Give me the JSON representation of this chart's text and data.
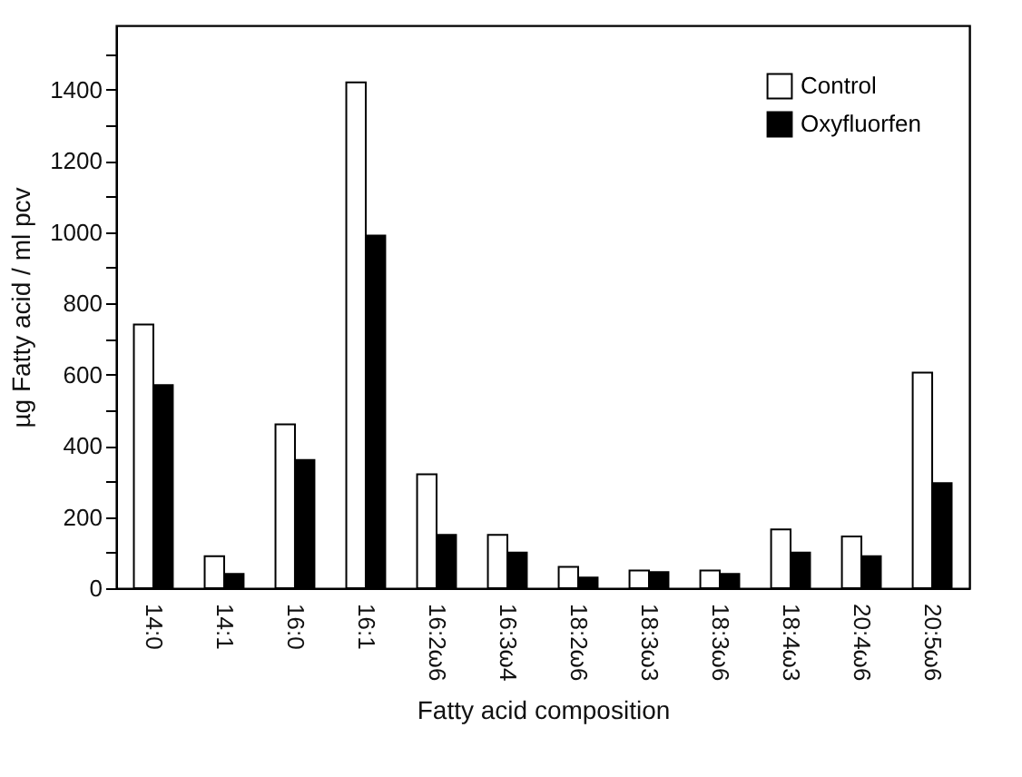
{
  "chart_data": {
    "type": "bar",
    "xlabel": "Fatty acid composition",
    "ylabel": "µg Fatty acid / ml pcv",
    "categories": [
      "14:0",
      "14:1",
      "16:0",
      "16:1",
      "16:2ω6",
      "16:3ω4",
      "18:2ω6",
      "18:3ω3",
      "18:3ω6",
      "18:4ω3",
      "20:4ω6",
      "20:5ω6"
    ],
    "series": [
      {
        "name": "Control",
        "color": "#ffffff",
        "values": [
          740,
          90,
          460,
          1420,
          320,
          150,
          60,
          50,
          50,
          165,
          145,
          605
        ]
      },
      {
        "name": "Oxyfluorfen",
        "color": "#000000",
        "values": [
          570,
          40,
          360,
          990,
          150,
          100,
          30,
          45,
          40,
          100,
          90,
          295
        ]
      }
    ],
    "ylim": [
      0,
      1580
    ],
    "yticks": [
      0,
      {
        "value": 100,
        "label": null
      },
      200,
      {
        "value": 300,
        "label": null
      },
      400,
      {
        "value": 500,
        "label": null
      },
      600,
      {
        "value": 700,
        "label": null
      },
      800,
      {
        "value": 900,
        "label": null
      },
      1000,
      {
        "value": 1100,
        "label": null
      },
      1200,
      {
        "value": 1300,
        "label": null
      },
      1400,
      {
        "value": 1500,
        "label": null
      }
    ],
    "grid": false,
    "legend": "top right"
  }
}
